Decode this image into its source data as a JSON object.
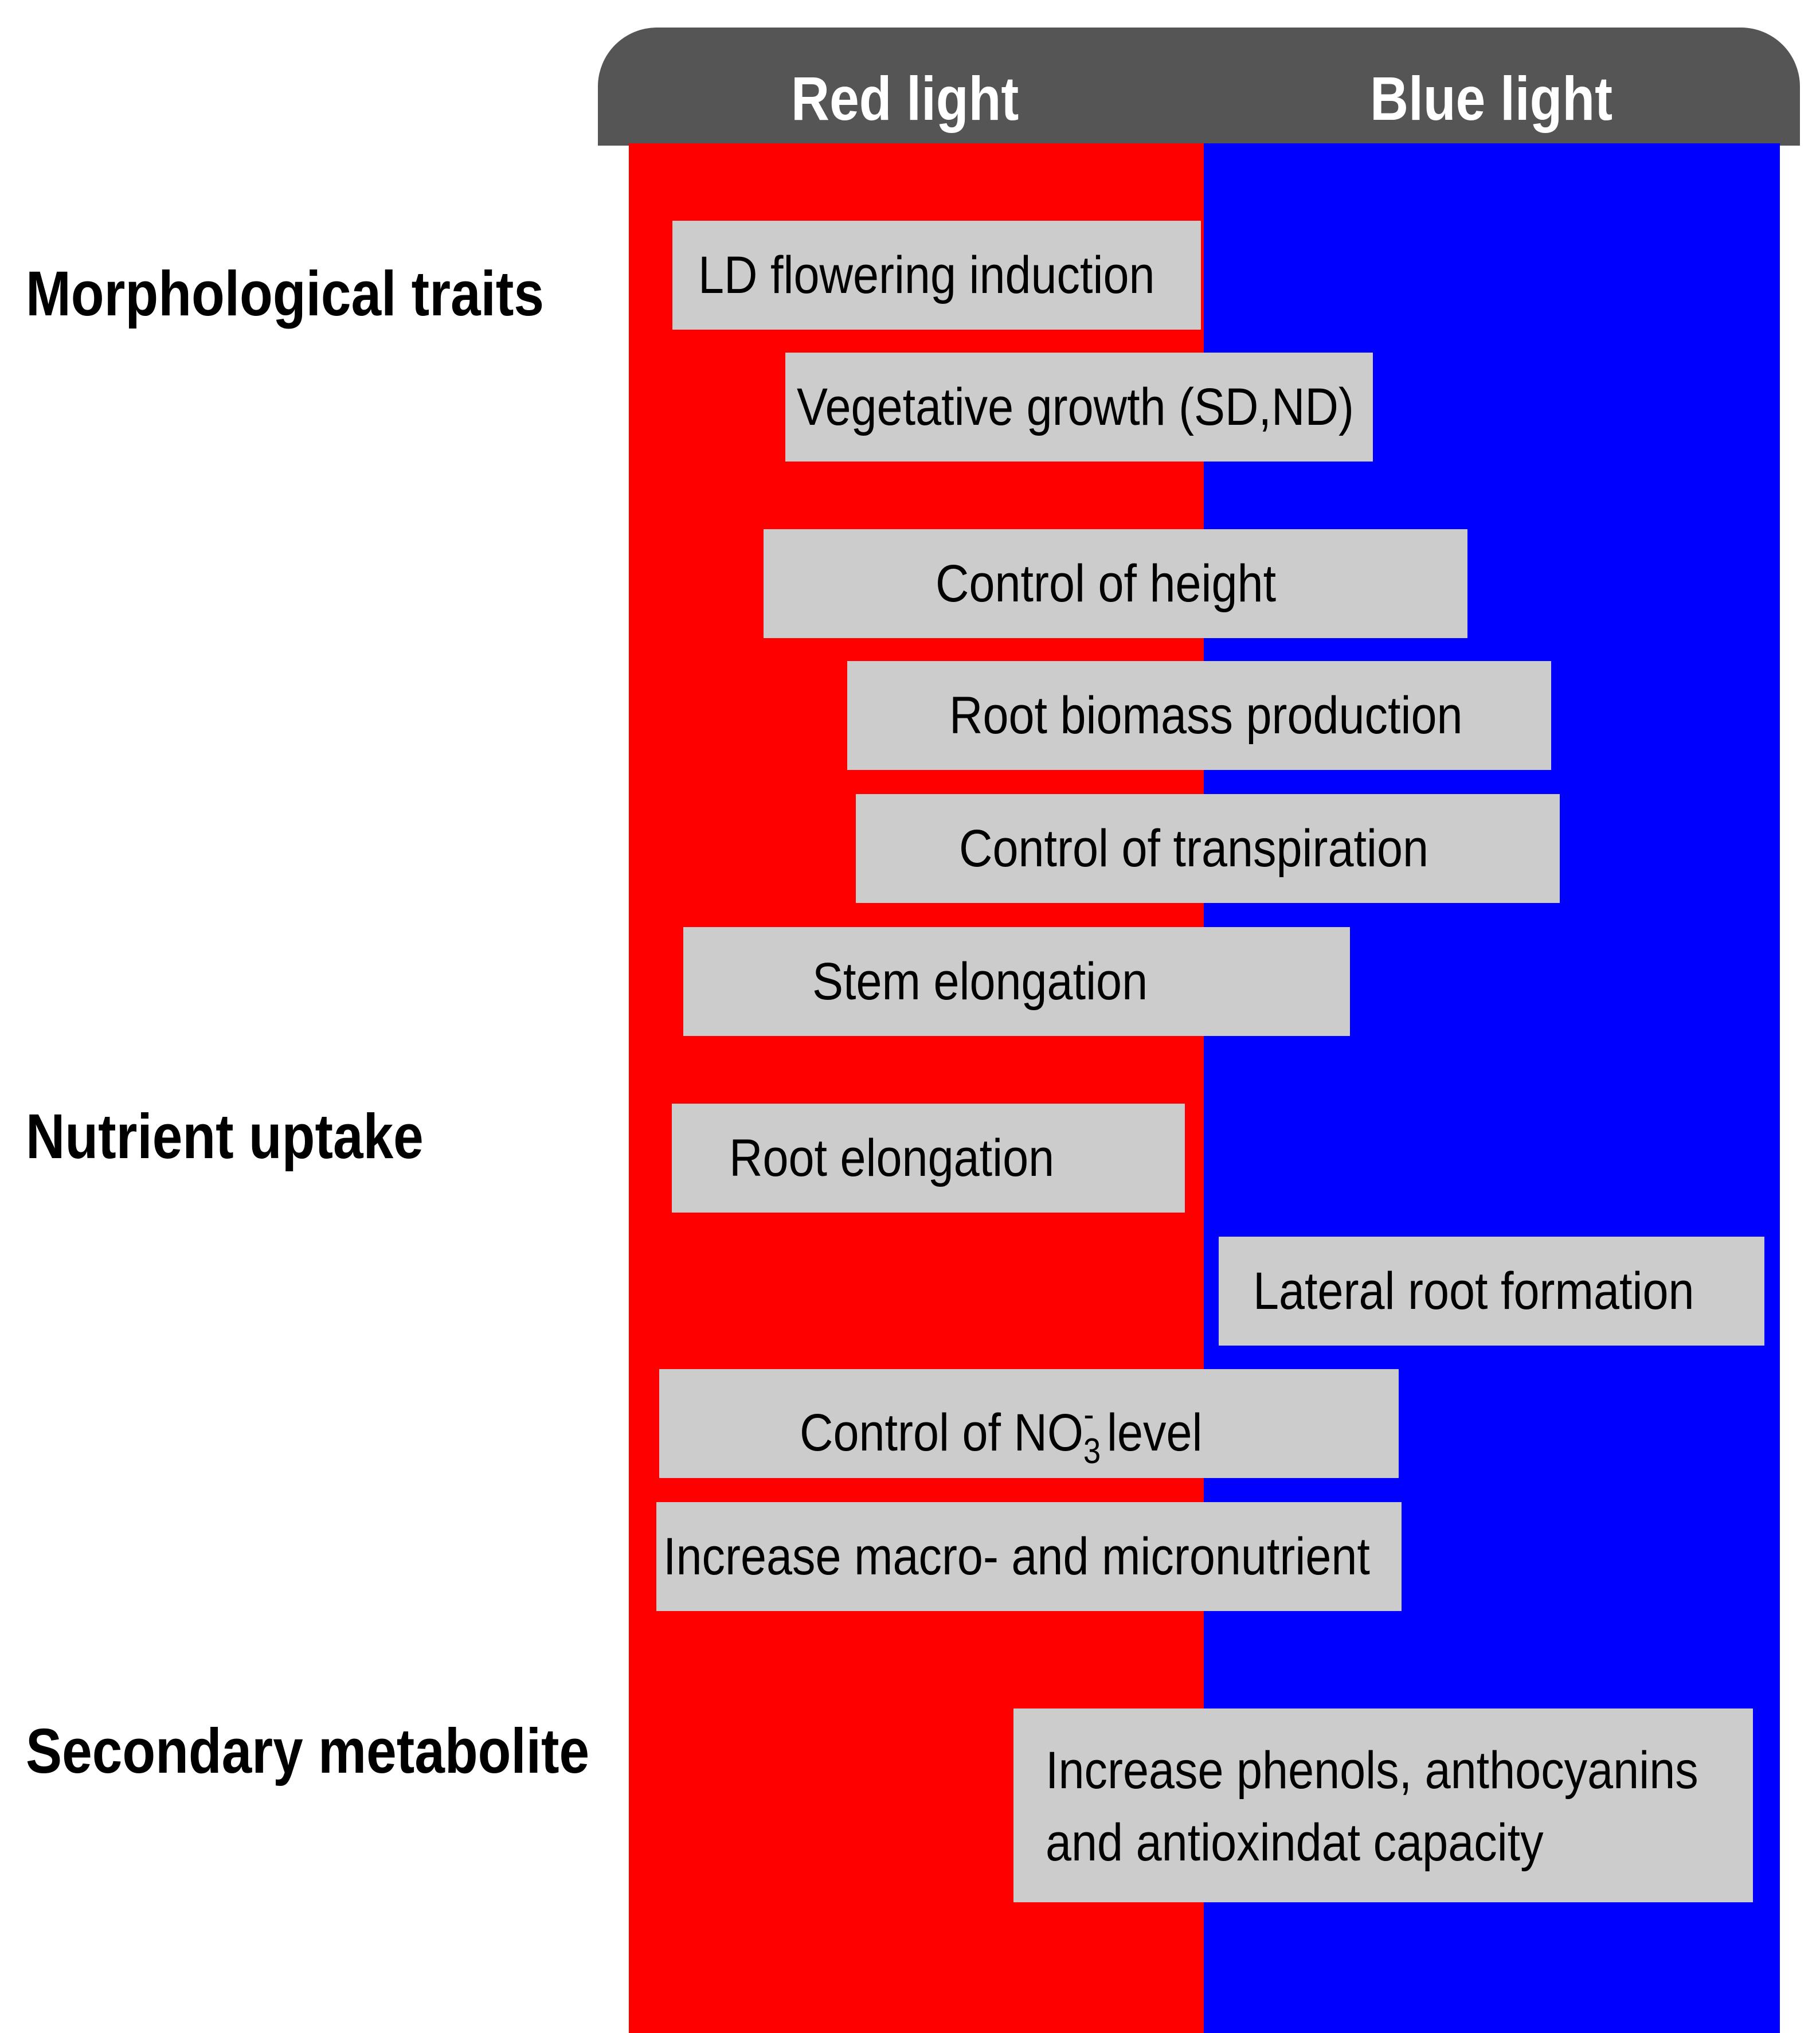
{
  "header": {
    "red_label": "Red light",
    "blue_label": "Blue light",
    "red_color": "#ff0000",
    "blue_color": "#0000ff",
    "bar_color": "#555555"
  },
  "categories": {
    "morphological": "Morphological traits",
    "nutrient": "Nutrient uptake",
    "secondary": "Secondary metabolite"
  },
  "boxes": {
    "ld_flowering": "LD flowering induction",
    "vegetative_growth": "Vegetative growth (SD,ND)",
    "control_height": "Control of height",
    "root_biomass": "Root biomass production",
    "control_transpiration": "Control of transpiration",
    "stem_elongation": "Stem elongation",
    "root_elongation": "Root elongation",
    "lateral_root": "Lateral root formation",
    "control_no3": {
      "prefix": "Control of NO",
      "subscript": "3",
      "superscript": "-",
      "suffix": " level"
    },
    "macro_micro": "Increase macro- and micronutrient",
    "phenols_line1": "Increase phenols, anthocyanins",
    "phenols_line2": "and antioxindat capacity"
  }
}
